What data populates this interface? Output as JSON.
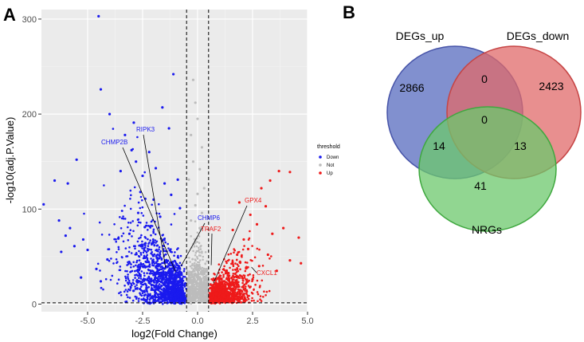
{
  "panel_a_label": "A",
  "panel_b_label": "B",
  "chart_data": [
    {
      "type": "scatter",
      "subtype": "volcano",
      "xlabel": "log2(Fold Change)",
      "ylabel": "-log10(adj.P.Value)",
      "xlim": [
        -7.1,
        5.0
      ],
      "ylim": [
        -8,
        310
      ],
      "xticks": [
        -5.0,
        -2.5,
        0.0,
        2.5,
        5.0
      ],
      "xtick_labels": [
        "-5.0",
        "-2.5",
        "0.0",
        "2.5",
        "5.0"
      ],
      "yticks": [
        0,
        100,
        200,
        300
      ],
      "ytick_labels": [
        "0",
        "100",
        "200",
        "300"
      ],
      "threshold_lines": {
        "vertical": [
          -0.5,
          0.5
        ],
        "horizontal": [
          1.3
        ]
      },
      "grid": true,
      "legend": {
        "title": "threshold",
        "placement": "right",
        "entries": [
          {
            "label": "Down",
            "color": "#1a1aee"
          },
          {
            "label": "Not",
            "color": "#bcbcbc"
          },
          {
            "label": "Up",
            "color": "#ee1a1a"
          }
        ]
      },
      "series": [
        {
          "name": "Down",
          "color": "#1a1aee",
          "points": [
            [
              -4.5,
              303
            ],
            [
              -4.4,
              226
            ],
            [
              -1.1,
              242
            ],
            [
              -4.0,
              200
            ],
            [
              -1.6,
              207
            ],
            [
              -2.9,
              191
            ],
            [
              -1.3,
              185
            ],
            [
              -3.3,
              178
            ],
            [
              -5.5,
              152
            ],
            [
              -6.5,
              130
            ],
            [
              -5.9,
              127
            ],
            [
              -7.0,
              105
            ],
            [
              -6.3,
              88
            ],
            [
              -5.8,
              80
            ],
            [
              -6.0,
              72
            ],
            [
              -5.2,
              68
            ],
            [
              -5.6,
              61
            ],
            [
              -5.0,
              57
            ],
            [
              -6.2,
              55
            ],
            [
              -4.1,
              47
            ],
            [
              -3.6,
              69
            ],
            [
              -4.6,
              37
            ],
            [
              -5.3,
              28
            ],
            [
              -4.4,
              24
            ],
            [
              -2.8,
              150
            ],
            [
              -2.5,
              135
            ],
            [
              -2.2,
              160
            ],
            [
              -1.9,
              143
            ],
            [
              -1.5,
              127
            ],
            [
              -2.0,
              110
            ],
            [
              -1.2,
              115
            ],
            [
              -0.9,
              131
            ],
            [
              -0.8,
              101
            ],
            [
              -1.7,
              92
            ],
            [
              -2.7,
              96
            ],
            [
              -3.1,
              74
            ],
            [
              -2.4,
              81
            ],
            [
              -3.0,
              162
            ],
            [
              -3.5,
              140
            ],
            [
              -2.6,
              118
            ]
          ]
        },
        {
          "name": "Not",
          "color": "#bcbcbc",
          "points": [
            [
              -0.2,
              236
            ],
            [
              -0.1,
              212
            ],
            [
              0.0,
              195
            ],
            [
              -0.3,
              178
            ],
            [
              0.2,
              165
            ],
            [
              -0.2,
              150
            ],
            [
              0.1,
              142
            ],
            [
              -0.4,
              131
            ],
            [
              0.3,
              122
            ],
            [
              0.0,
              116
            ],
            [
              -0.1,
              104
            ],
            [
              0.2,
              96
            ],
            [
              -0.3,
              88
            ],
            [
              0.1,
              80
            ]
          ]
        },
        {
          "name": "Up",
          "color": "#ee1a1a",
          "points": [
            [
              3.7,
              140
            ],
            [
              4.2,
              139
            ],
            [
              3.3,
              130
            ],
            [
              2.9,
              122
            ],
            [
              1.9,
              107
            ],
            [
              3.1,
              103
            ],
            [
              2.4,
              94
            ],
            [
              2.7,
              84
            ],
            [
              3.9,
              80
            ],
            [
              3.4,
              74
            ],
            [
              4.6,
              70
            ],
            [
              2.1,
              68
            ],
            [
              4.2,
              46
            ],
            [
              4.7,
              43
            ],
            [
              3.6,
              35
            ],
            [
              2.3,
              58
            ],
            [
              1.8,
              52
            ],
            [
              2.8,
              40
            ],
            [
              3.2,
              52
            ],
            [
              1.6,
              78
            ],
            [
              2.5,
              26
            ]
          ]
        }
      ],
      "annotations": [
        {
          "label": "RIPK3",
          "color": "#1a1aee",
          "x": -1.45,
          "y": 38
        },
        {
          "label": "CHMP2B",
          "color": "#1a1aee",
          "x": -1.0,
          "y": 34
        },
        {
          "label": "CHMP6",
          "color": "#1a1aee",
          "x": -0.75,
          "y": 40
        },
        {
          "label": "TRAF2",
          "color": "#ee1a1a",
          "x": 0.62,
          "y": 41
        },
        {
          "label": "GPX4",
          "color": "#ee1a1a",
          "x": 0.72,
          "y": 22
        },
        {
          "label": "CXCL1",
          "color": "#ee1a1a",
          "x": 2.45,
          "y": 39
        }
      ]
    },
    {
      "type": "venn",
      "sets": [
        {
          "name": "DEGs_up",
          "color": "#6b7cc7"
        },
        {
          "name": "DEGs_down",
          "color": "#e06a6a"
        },
        {
          "name": "NRGs",
          "color": "#6cc86c"
        }
      ],
      "regions": [
        {
          "sets": [
            "DEGs_up"
          ],
          "value": "2866"
        },
        {
          "sets": [
            "DEGs_down"
          ],
          "value": "2423"
        },
        {
          "sets": [
            "NRGs"
          ],
          "value": "41"
        },
        {
          "sets": [
            "DEGs_up",
            "DEGs_down"
          ],
          "value": "0"
        },
        {
          "sets": [
            "DEGs_up",
            "DEGs_down",
            "NRGs"
          ],
          "value": "0"
        },
        {
          "sets": [
            "DEGs_up",
            "NRGs"
          ],
          "value": "14"
        },
        {
          "sets": [
            "DEGs_down",
            "NRGs"
          ],
          "value": "13"
        }
      ]
    }
  ]
}
